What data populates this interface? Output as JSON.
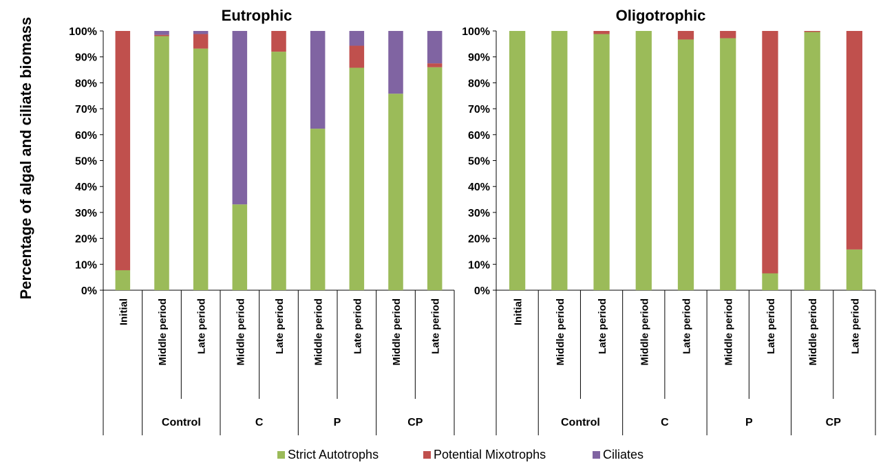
{
  "chart_data": {
    "type": "bar",
    "stacked": true,
    "percent": true,
    "ylabel": "Percentage of algal and ciliate biomass",
    "yticks": [
      "0%",
      "10%",
      "20%",
      "30%",
      "40%",
      "50%",
      "60%",
      "70%",
      "80%",
      "90%",
      "100%"
    ],
    "ylim": [
      0,
      100
    ],
    "legend": {
      "position": "bottom",
      "entries": [
        "Strict Autotrophs",
        "Potential Mixotrophs",
        "Ciliates"
      ]
    },
    "series_colors": {
      "Strict Autotrophs": "#9bbb59",
      "Potential Mixotrophs": "#c0504d",
      "Ciliates": "#8064a2"
    },
    "panels": [
      {
        "title": "Eutrophic",
        "categories": [
          "Initial",
          "Middle period",
          "Late  period",
          "Middle period",
          "Late  period",
          "Middle period",
          "Late  period",
          "Middle period",
          "Late  period"
        ],
        "groups": [
          {
            "label": "",
            "span": 1
          },
          {
            "label": "Control",
            "span": 2
          },
          {
            "label": "C",
            "span": 2
          },
          {
            "label": "P",
            "span": 2
          },
          {
            "label": "CP",
            "span": 2
          }
        ],
        "series": [
          {
            "name": "Strict Autotrophs",
            "values": [
              7.7,
              98,
              93.2,
              33.1,
              92,
              62.3,
              85.8,
              75.8,
              86
            ]
          },
          {
            "name": "Potential Mixotrophs",
            "values": [
              92.3,
              0.5,
              5.6,
              0,
              8,
              0,
              8.5,
              0,
              1.5
            ]
          },
          {
            "name": "Ciliates",
            "values": [
              0,
              1.5,
              1.2,
              66.9,
              0,
              37.7,
              5.7,
              24.2,
              12.5
            ]
          }
        ]
      },
      {
        "title": "Oligotrophic",
        "categories": [
          "Initial",
          "Middle period",
          "Late  period",
          "Middle period",
          "Late  period",
          "Middle period",
          "Late  period",
          "Middle period",
          "Late  period"
        ],
        "groups": [
          {
            "label": "",
            "span": 1
          },
          {
            "label": "Control",
            "span": 2
          },
          {
            "label": "C",
            "span": 2
          },
          {
            "label": "P",
            "span": 2
          },
          {
            "label": "CP",
            "span": 2
          }
        ],
        "series": [
          {
            "name": "Strict Autotrophs",
            "values": [
              100,
              100,
              98.8,
              100,
              96.7,
              97.2,
              6.5,
              99.6,
              15.7
            ]
          },
          {
            "name": "Potential Mixotrophs",
            "values": [
              0,
              0,
              1.2,
              0,
              3.3,
              2.8,
              93.5,
              0.4,
              84.3
            ]
          },
          {
            "name": "Ciliates",
            "values": [
              0,
              0,
              0,
              0,
              0,
              0,
              0,
              0,
              0
            ]
          }
        ]
      }
    ]
  }
}
